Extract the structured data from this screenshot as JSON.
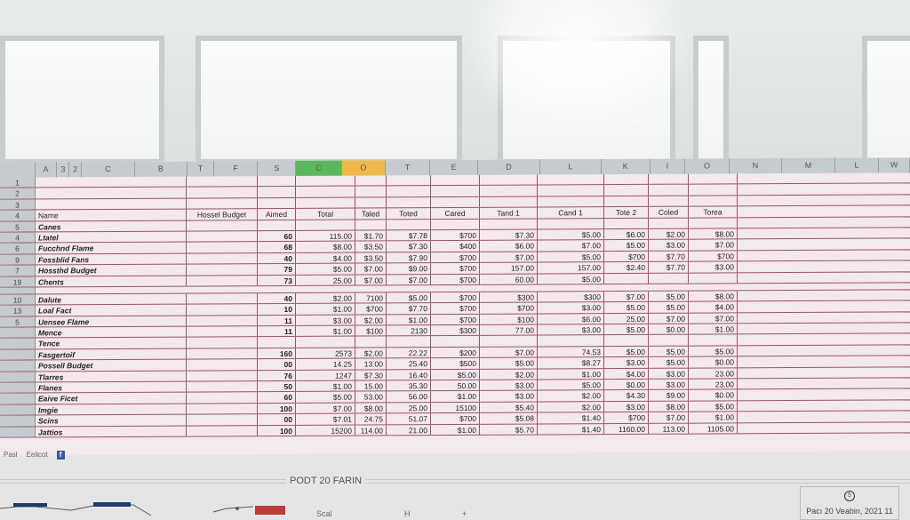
{
  "window": {
    "background": "#e4e6e6"
  },
  "sheet": {
    "column_letters": [
      "",
      "A",
      "3",
      "2",
      "C",
      "B",
      "T",
      "F",
      "S",
      "C",
      "O",
      "T",
      "E",
      "D",
      "L",
      "K",
      "I",
      "O",
      "N",
      "M",
      "L",
      "W"
    ],
    "highlight": {
      "green": "#5cb85c",
      "orange": "#f0b94a"
    },
    "header_row": {
      "rownum": "4",
      "name": "Name",
      "budget": "Hossel Budget",
      "amount": "Aimed",
      "values": [
        "Total",
        "Taled",
        "Toted",
        "Cared",
        "Tand 1",
        "Cand 1",
        "Tote 2",
        "Coled",
        "Torea"
      ]
    },
    "top_rows": [
      "1",
      "2",
      "3"
    ],
    "rows": [
      {
        "rownum": "5",
        "name": "Canes",
        "amount": "",
        "values": [
          "",
          "",
          "",
          "",
          "",
          "",
          "",
          "",
          ""
        ]
      },
      {
        "rownum": "4",
        "name": "Ltatel",
        "amount": "60",
        "values": [
          "115.00",
          "$1.70",
          "$7.78",
          "$700",
          "$7.30",
          "$5.00",
          "$6.00",
          "$2.00",
          "$8.00"
        ]
      },
      {
        "rownum": "6",
        "name": "Fucchnd Flame",
        "amount": "68",
        "values": [
          "$8.00",
          "$3.50",
          "$7.30",
          "$400",
          "$6.00",
          "$7.00",
          "$5.00",
          "$3.00",
          "$7.00"
        ]
      },
      {
        "rownum": "9",
        "name": "Fossblid Fans",
        "amount": "40",
        "values": [
          "$4.00",
          "$3.50",
          "$7.90",
          "$700",
          "$7.00",
          "$5.00",
          "$700",
          "$7.70",
          "$700"
        ]
      },
      {
        "rownum": "7",
        "name": "Hossthd Budget",
        "amount": "79",
        "values": [
          "$5.00",
          "$7.00",
          "$9.00",
          "$700",
          "157.00",
          "157.00",
          "$2.40",
          "$7.70",
          "$3.00"
        ]
      },
      {
        "rownum": "19",
        "name": "Chents",
        "amount": "73",
        "values": [
          "25.00",
          "$7.00",
          "$7.00",
          "$700",
          "60.00",
          "$5.00",
          "",
          "",
          ""
        ]
      },
      {
        "gap": true
      },
      {
        "rownum": "10",
        "name": "Dalute",
        "amount": "40",
        "values": [
          "$2.00",
          "7100",
          "$5.00",
          "$700",
          "$300",
          "$300",
          "$7.00",
          "$5.00",
          "$8.00"
        ]
      },
      {
        "rownum": "13",
        "name": "Loal Fact",
        "amount": "10",
        "values": [
          "$1.00",
          "$700",
          "$7.70",
          "$700",
          "$700",
          "$3.00",
          "$5.00",
          "$5.00",
          "$4.00"
        ]
      },
      {
        "rownum": "5",
        "name": "Uensee Flame",
        "amount": "11",
        "values": [
          "$3.00",
          "$2.00",
          "$1.00",
          "$700",
          "$100",
          "$6.00",
          "25.00",
          "$7.00",
          "$7.00"
        ]
      },
      {
        "rownum": "",
        "name": "Mence",
        "amount": "11",
        "values": [
          "$1.00",
          "$100",
          "2130",
          "$300",
          "77.00",
          "$3.00",
          "$5.00",
          "$0.00",
          "$1.00"
        ]
      },
      {
        "rownum": "",
        "name": "Tence",
        "amount": "",
        "values": [
          "",
          "",
          "",
          "",
          "",
          "",
          "",
          "",
          ""
        ]
      },
      {
        "rownum": "",
        "name": "Fasgertoif",
        "amount": "160",
        "values": [
          "2573",
          "$2.00",
          "22.22",
          "$200",
          "$7.00",
          "74.53",
          "$5.00",
          "$5.00",
          "$5.00"
        ]
      },
      {
        "rownum": "",
        "name": "Possell Budget",
        "amount": "00",
        "values": [
          "14.25",
          "13.00",
          "25.40",
          "$500",
          "$5.00",
          "$8.27",
          "$3.00",
          "$5.00",
          "$0.00"
        ]
      },
      {
        "rownum": "",
        "name": "Tlarres",
        "amount": "76",
        "values": [
          "1247",
          "$7.30",
          "16.40",
          "$5.00",
          "$2.00",
          "$1.00",
          "$4.00",
          "$3.00",
          "23.00"
        ]
      },
      {
        "rownum": "",
        "name": "Flanes",
        "amount": "50",
        "values": [
          "$1.00",
          "15.00",
          "35.30",
          "50.00",
          "$3.00",
          "$5.00",
          "$0.00",
          "$3.00",
          "23.00"
        ]
      },
      {
        "rownum": "",
        "name": "Eaive Ficet",
        "amount": "60",
        "values": [
          "$5.00",
          "53.00",
          "56.00",
          "$1.00",
          "$3.00",
          "$2.00",
          "$4.30",
          "$9.00",
          "$0.00"
        ]
      },
      {
        "rownum": "",
        "name": "Imgie",
        "amount": "100",
        "values": [
          "$7.00",
          "$8.00",
          "25.00",
          "15100",
          "$5.40",
          "$2.00",
          "$3.00",
          "$8.00",
          "$5.00"
        ]
      },
      {
        "rownum": "",
        "name": "Scins",
        "amount": "00",
        "values": [
          "$7.01",
          "24.75",
          "51.07",
          "$700",
          "$5.08",
          "$1.40",
          "$700",
          "$7.00",
          "$1.00"
        ]
      },
      {
        "rownum": "",
        "name": "Jattios",
        "amount": "100",
        "values": [
          "15200",
          "114.00",
          "21.00",
          "$1.00",
          "$5.70",
          "$1.40",
          "1160.00",
          "113.00",
          "1105.00"
        ]
      }
    ]
  },
  "sheet_tabs": [
    "Pasl",
    "Eelicot"
  ],
  "footer": {
    "title": "PODT 20 FARIN",
    "label_scal": "Scal",
    "label_h": "H",
    "label_plus": "+",
    "date_text": "Pacı 20 Veabin, 2021 11",
    "clock_glyph": "5"
  }
}
